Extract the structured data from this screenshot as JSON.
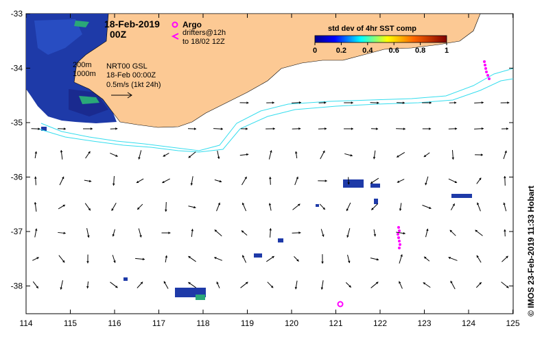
{
  "header": {
    "date": "18-Feb-2019",
    "time": "00Z"
  },
  "legend": {
    "argo_label": "Argo",
    "drifters_label": "drifters@12h",
    "drifters_to": "to 18/02 12Z",
    "argo_color": "#ff00ff"
  },
  "colorbar": {
    "title": "std dev of 4hr SST comp",
    "ticks": [
      "0",
      "0.2",
      "0.4",
      "0.6",
      "0.8",
      "1"
    ]
  },
  "contours": {
    "label_200": "200m",
    "label_1000": "1000m",
    "color": "#33ddee"
  },
  "info": {
    "line1": "NRT00 GSL",
    "line2": "18-Feb 00:00Z",
    "line3": "0.5m/s (1kt 24h)"
  },
  "axes": {
    "x_ticks": [
      "114",
      "115",
      "116",
      "117",
      "118",
      "119",
      "120",
      "121",
      "122",
      "123",
      "124",
      "125"
    ],
    "y_ticks": [
      "-33",
      "-34",
      "-35",
      "-36",
      "-37",
      "-38"
    ]
  },
  "credit": "© IMOS 23-Feb-2019 11:33 Hobart",
  "colors": {
    "land": "#fcc994",
    "ocean": "#ffffff",
    "sst_low": "#1a2a8f",
    "arrow": "#000000"
  }
}
